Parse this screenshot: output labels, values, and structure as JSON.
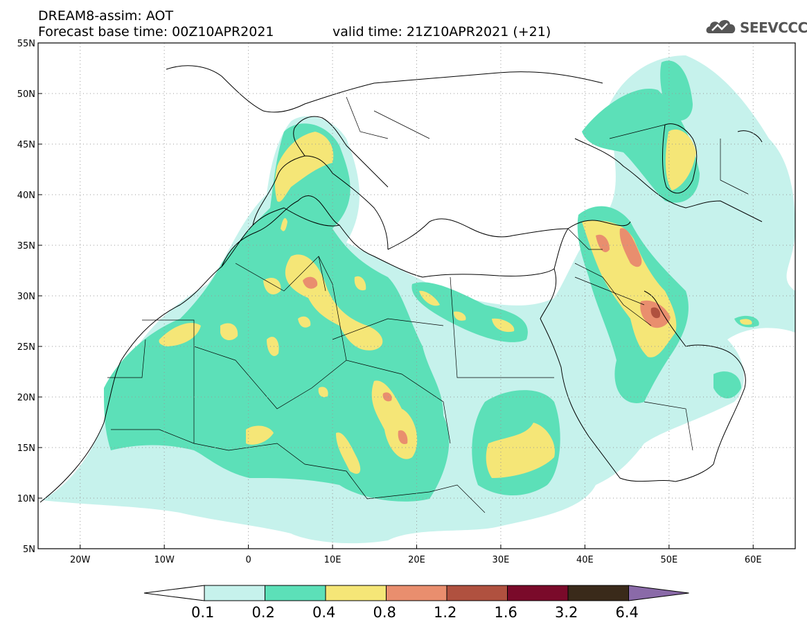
{
  "header": {
    "title": "DREAM8-assim: AOT",
    "base_time": "Forecast base time: 00Z10APR2021",
    "valid_time": "valid time: 21Z10APR2021 (+21)"
  },
  "logo": {
    "text": "SEEVCCC",
    "icon": "cloud-icon",
    "color": "#555555"
  },
  "map": {
    "lon_range": [
      -25,
      65
    ],
    "lat_range": [
      5,
      55
    ],
    "lat_labels": [
      "5N",
      "10N",
      "15N",
      "20N",
      "25N",
      "30N",
      "35N",
      "40N",
      "45N",
      "50N",
      "55N"
    ],
    "lat_values": [
      5,
      10,
      15,
      20,
      25,
      30,
      35,
      40,
      45,
      50,
      55
    ],
    "lon_labels": [
      "20W",
      "10W",
      "0",
      "10E",
      "20E",
      "30E",
      "40E",
      "50E",
      "60E"
    ],
    "lon_values": [
      -20,
      -10,
      0,
      10,
      20,
      30,
      40,
      50,
      60
    ],
    "grid": true,
    "levels": [
      {
        "name": "0.1-0.2",
        "color": "#c6f2ec"
      },
      {
        "name": "0.2-0.4",
        "color": "#5ce0b8"
      },
      {
        "name": "0.4-0.8",
        "color": "#f5e677"
      },
      {
        "name": "0.8-1.2",
        "color": "#e98e6e"
      },
      {
        "name": "1.2-1.6",
        "color": "#b0513f"
      }
    ]
  },
  "colorbar": {
    "labels": [
      "0.1",
      "0.2",
      "0.4",
      "0.8",
      "1.2",
      "1.6",
      "3.2",
      "6.4"
    ],
    "colors": [
      "#ffffff",
      "#c6f2ec",
      "#5ce0b8",
      "#f5e677",
      "#e98e6e",
      "#b0513f",
      "#7a0a2a",
      "#3a2a1a",
      "#8a6aa8"
    ]
  }
}
